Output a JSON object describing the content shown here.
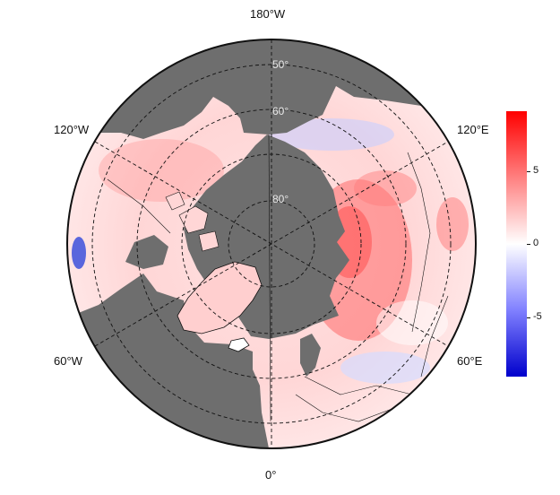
{
  "map": {
    "projection": "north polar stereographic",
    "ocean_color": "#6e6e6e",
    "land_colors": {
      "warm_strong": "#ff5a5a",
      "warm_light": "#ffd0d0",
      "neutral": "#ffffff",
      "cool_light": "#e4e8ff",
      "cool_strong": "#3c50dc"
    },
    "longitude_labels": {
      "top": "180°W",
      "bottom": "0°",
      "upper_left": "120°W",
      "upper_right": "120°E",
      "lower_left": "60°W",
      "lower_right": "60°E"
    },
    "latitude_labels": [
      "50°",
      "60°",
      "80°"
    ],
    "colorbar": {
      "ticks": [
        "5",
        "0",
        "-5"
      ],
      "colors": [
        "#ff0000",
        "#ffffff",
        "#0000cc"
      ]
    }
  }
}
